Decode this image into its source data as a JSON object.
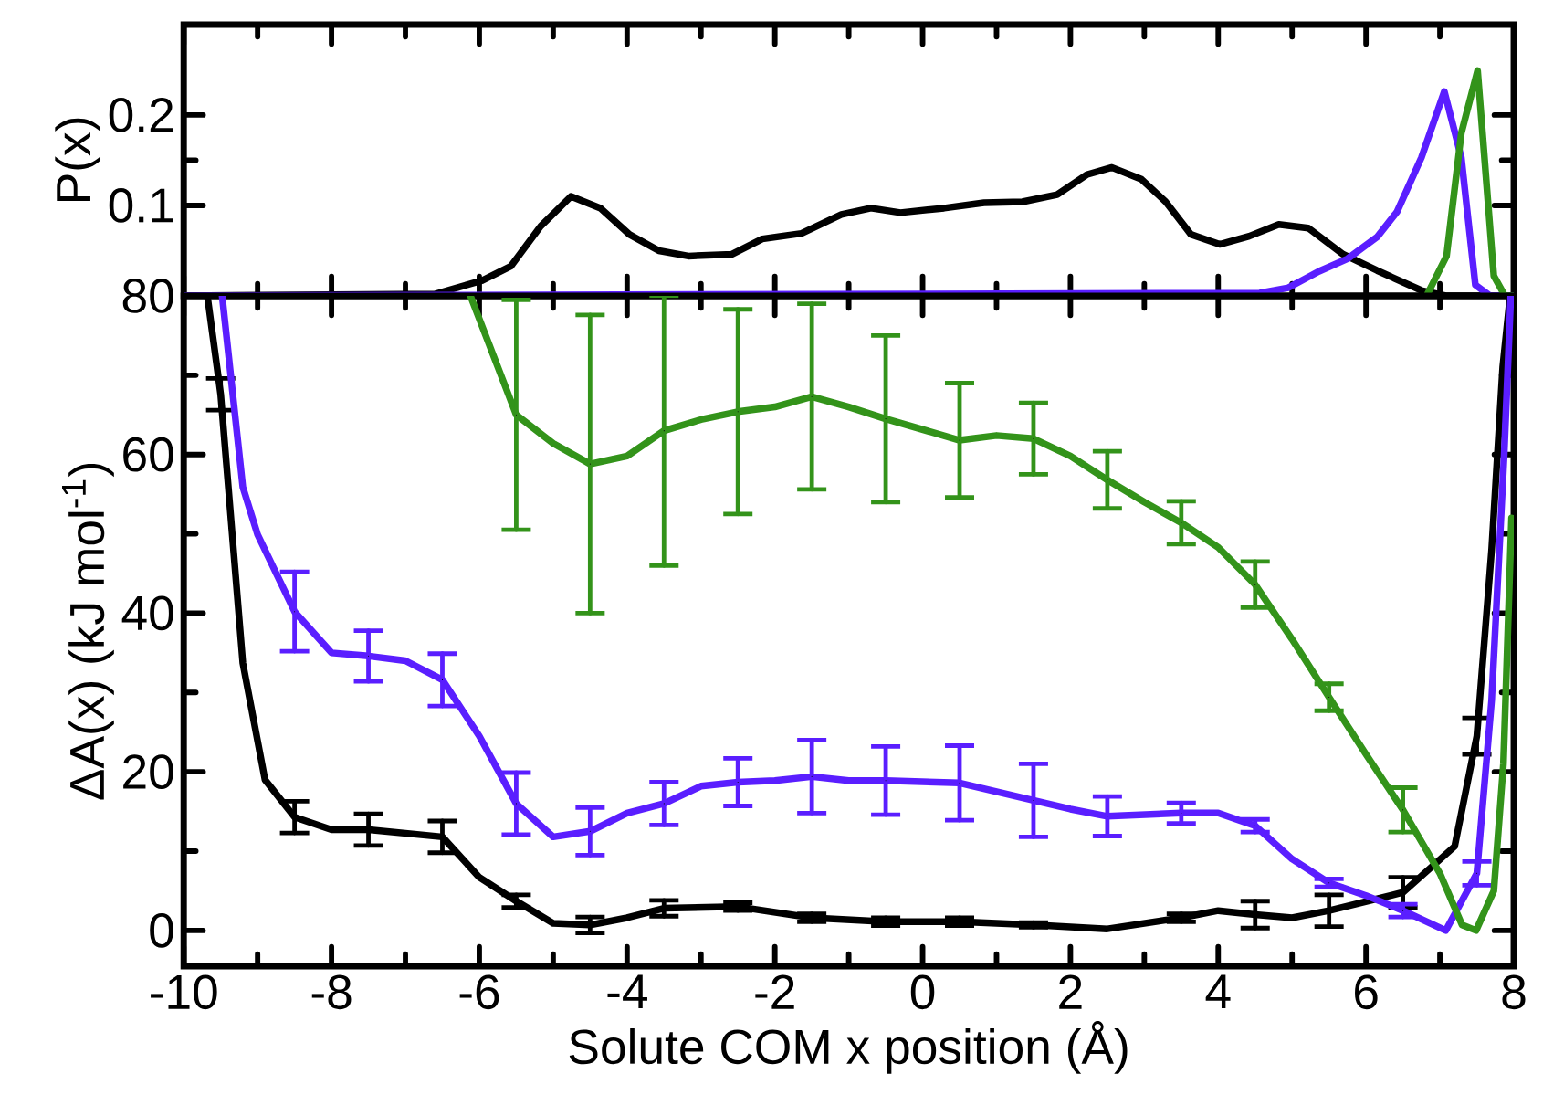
{
  "chart_data": [
    {
      "type": "line",
      "ylabel": "P(x)",
      "xlim": [
        -10,
        8
      ],
      "xticks": [
        -10,
        -8,
        -6,
        -4,
        -2,
        0,
        2,
        4,
        6,
        8
      ],
      "ylim": [
        0,
        0.3
      ],
      "yticks": [
        0.1,
        0.2
      ],
      "tick_labels": "y",
      "series": [
        {
          "color": "#000000",
          "x": [
            -10,
            -6.6,
            -5.96,
            -5.57,
            -5.17,
            -4.76,
            -4.36,
            -3.97,
            -3.57,
            -3.17,
            -2.58,
            -2.17,
            -1.64,
            -1.1,
            -0.7,
            -0.3,
            0.29,
            0.83,
            1.35,
            1.82,
            2.22,
            2.56,
            2.96,
            3.29,
            3.63,
            4.02,
            4.42,
            4.82,
            5.22,
            5.69,
            6.15,
            6.75,
            7.08,
            8
          ],
          "values": [
            0,
            0.002,
            0.017,
            0.033,
            0.077,
            0.11,
            0.097,
            0.068,
            0.05,
            0.044,
            0.046,
            0.063,
            0.069,
            0.09,
            0.097,
            0.092,
            0.097,
            0.103,
            0.104,
            0.112,
            0.134,
            0.142,
            0.129,
            0.104,
            0.068,
            0.057,
            0.066,
            0.079,
            0.075,
            0.046,
            0.028,
            0.006,
            0,
            0
          ]
        },
        {
          "color": "#5a1eff",
          "x": [
            -10,
            4.56,
            4.95,
            5.36,
            5.75,
            6.15,
            6.42,
            6.75,
            7.06,
            7.29,
            7.48,
            7.68,
            8
          ],
          "values": [
            0,
            0.003,
            0.009,
            0.027,
            0.041,
            0.065,
            0.093,
            0.153,
            0.226,
            0.153,
            0.012,
            0,
            0
          ]
        },
        {
          "color": "#33931a",
          "x": [
            6.82,
            7.09,
            7.29,
            7.51,
            7.73,
            7.88,
            8
          ],
          "values": [
            0,
            0.044,
            0.18,
            0.249,
            0.022,
            0,
            0
          ]
        }
      ]
    },
    {
      "type": "line",
      "xlabel": "Solute COM x position (Å)",
      "ylabel": "ΔA(x) (kJ mol$^{-1}$)",
      "xlim": [
        -10,
        8
      ],
      "xticks": [
        -10,
        -8,
        -6,
        -4,
        -2,
        0,
        2,
        4,
        6,
        8
      ],
      "ylim": [
        -4.5,
        80
      ],
      "yticks": [
        0,
        20,
        40,
        60,
        80
      ],
      "series": [
        {
          "color": "#000000",
          "x": [
            -9.68,
            -9.5,
            -9.2,
            -8.9,
            -8.5,
            -8.0,
            -7.5,
            -6.5,
            -6.0,
            -5.5,
            -5.0,
            -4.5,
            -4.0,
            -3.5,
            -2.5,
            -1.5,
            -0.5,
            0.5,
            1.5,
            2.5,
            3.5,
            4.0,
            4.5,
            5.0,
            5.5,
            6.5,
            7.2,
            7.5,
            7.7,
            7.85,
            7.95
          ],
          "values": [
            80,
            67.6,
            33.7,
            19,
            14.3,
            12.7,
            12.7,
            11.8,
            6.7,
            3.7,
            0.9,
            0.7,
            1.6,
            2.8,
            3.0,
            1.6,
            1.1,
            1.1,
            0.7,
            0.2,
            1.6,
            2.5,
            2.0,
            1.6,
            2.5,
            4.8,
            10.6,
            24.5,
            48,
            71,
            80
          ],
          "errors": [
            null,
            2,
            null,
            null,
            2,
            null,
            2,
            2,
            null,
            0.8,
            null,
            1,
            null,
            1,
            0.5,
            0.5,
            0.5,
            0.5,
            0.3,
            null,
            0.5,
            null,
            1.7,
            null,
            2,
            1.9,
            null,
            2.3,
            null,
            null,
            null
          ]
        },
        {
          "color": "#5a1eff",
          "x": [
            -9.48,
            -9.2,
            -9.0,
            -8.5,
            -8.0,
            -7.5,
            -7.0,
            -6.5,
            -6.0,
            -5.5,
            -5.0,
            -4.5,
            -4.0,
            -3.5,
            -3.0,
            -2.5,
            -2.0,
            -1.5,
            -1.0,
            -0.5,
            0.5,
            1.0,
            1.5,
            2.0,
            2.5,
            3.5,
            4.0,
            4.5,
            5.0,
            5.5,
            6.0,
            6.5,
            7.08,
            7.5,
            7.7,
            7.87,
            7.96
          ],
          "values": [
            80,
            55.9,
            49.9,
            40.2,
            35,
            34.6,
            34,
            31.6,
            24.5,
            16,
            11.8,
            12.5,
            14.8,
            16,
            18.2,
            18.7,
            18.9,
            19.4,
            18.9,
            18.9,
            18.6,
            17.5,
            16.4,
            15.3,
            14.4,
            14.8,
            14.8,
            13.2,
            9,
            6,
            4.4,
            2.5,
            0,
            7.2,
            29,
            60,
            80
          ],
          "errors": [
            null,
            null,
            null,
            5,
            null,
            3.2,
            null,
            3.3,
            null,
            3.9,
            null,
            3,
            null,
            2.7,
            null,
            3,
            null,
            4.6,
            null,
            4.3,
            4.7,
            null,
            4.6,
            null,
            2.5,
            1.3,
            null,
            0.8,
            null,
            0.5,
            null,
            0.8,
            null,
            1.5,
            null,
            null,
            null
          ]
        },
        {
          "color": "#33931a",
          "x": [
            -6.12,
            -5.5,
            -5.0,
            -4.5,
            -4.0,
            -3.5,
            -3.0,
            -2.5,
            -2.0,
            -1.5,
            -1.0,
            -0.5,
            0.5,
            1.0,
            1.5,
            2.0,
            2.5,
            3.0,
            3.5,
            4.0,
            4.5,
            5.0,
            5.5,
            6.0,
            6.5,
            7.0,
            7.3,
            7.49,
            7.73,
            7.86,
            7.97
          ],
          "values": [
            80,
            65,
            61.4,
            58.8,
            59.8,
            63,
            64.4,
            65.4,
            66,
            67.3,
            66,
            64.5,
            61.8,
            62.4,
            62,
            59.8,
            56.8,
            54,
            51.4,
            48.3,
            43.6,
            36.7,
            29.4,
            22.2,
            15.2,
            7.2,
            0.7,
            0,
            5,
            21,
            52
          ],
          "errors": [
            null,
            14.5,
            null,
            18.8,
            null,
            17,
            null,
            12.9,
            null,
            11.7,
            null,
            10.5,
            7.2,
            null,
            4.5,
            null,
            3.6,
            null,
            2.7,
            null,
            2.9,
            null,
            1.7,
            null,
            2.8,
            null,
            null,
            null,
            null,
            null,
            null
          ]
        }
      ]
    }
  ]
}
